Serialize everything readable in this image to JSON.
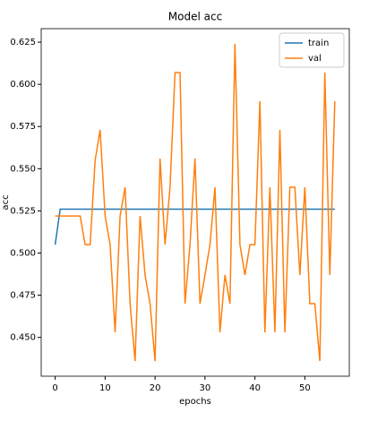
{
  "chart_data": {
    "type": "line",
    "title": "Model acc",
    "xlabel": "epochs",
    "ylabel": "acc",
    "x": [
      0,
      1,
      2,
      3,
      4,
      5,
      6,
      7,
      8,
      9,
      10,
      11,
      12,
      13,
      14,
      15,
      16,
      17,
      18,
      19,
      20,
      21,
      22,
      23,
      24,
      25,
      26,
      27,
      28,
      29,
      30,
      31,
      32,
      33,
      34,
      35,
      36,
      37,
      38,
      39,
      40,
      41,
      42,
      43,
      44,
      45,
      46,
      47,
      48,
      49,
      50,
      51,
      52,
      53,
      54,
      55,
      56
    ],
    "series": [
      {
        "name": "train",
        "color": "#1f77b4",
        "values": [
          0.505,
          0.526,
          0.526,
          0.526,
          0.526,
          0.526,
          0.526,
          0.526,
          0.526,
          0.526,
          0.526,
          0.526,
          0.526,
          0.526,
          0.526,
          0.526,
          0.526,
          0.526,
          0.526,
          0.526,
          0.526,
          0.526,
          0.526,
          0.526,
          0.526,
          0.526,
          0.526,
          0.526,
          0.526,
          0.526,
          0.526,
          0.526,
          0.526,
          0.526,
          0.526,
          0.526,
          0.526,
          0.526,
          0.526,
          0.526,
          0.526,
          0.526,
          0.526,
          0.526,
          0.526,
          0.526,
          0.526,
          0.526,
          0.526,
          0.526,
          0.526,
          0.526,
          0.526,
          0.526,
          0.526,
          0.526,
          0.526
        ]
      },
      {
        "name": "val",
        "color": "#ff7f0e",
        "values": [
          0.522,
          0.522,
          0.522,
          0.522,
          0.522,
          0.522,
          0.505,
          0.505,
          0.555,
          0.573,
          0.522,
          0.505,
          0.453,
          0.522,
          0.539,
          0.47,
          0.436,
          0.522,
          0.487,
          0.47,
          0.436,
          0.556,
          0.505,
          0.539,
          0.607,
          0.607,
          0.47,
          0.505,
          0.556,
          0.47,
          0.487,
          0.505,
          0.539,
          0.453,
          0.487,
          0.47,
          0.624,
          0.505,
          0.487,
          0.505,
          0.505,
          0.59,
          0.453,
          0.539,
          0.453,
          0.573,
          0.453,
          0.539,
          0.539,
          0.487,
          0.539,
          0.47,
          0.47,
          0.436,
          0.607,
          0.487,
          0.59
        ]
      }
    ],
    "xlim": [
      -2.8,
      58.9
    ],
    "xticks": [
      0,
      10,
      20,
      30,
      40,
      50
    ],
    "ylim": [
      0.427,
      0.633
    ],
    "yticks": [
      {
        "value": 0.45,
        "label": "0.450"
      },
      {
        "value": 0.475,
        "label": "0.475"
      },
      {
        "value": 0.5,
        "label": "0.500"
      },
      {
        "value": 0.525,
        "label": "0.525"
      },
      {
        "value": 0.55,
        "label": "0.550"
      },
      {
        "value": 0.575,
        "label": "0.575"
      },
      {
        "value": 0.6,
        "label": "0.600"
      },
      {
        "value": 0.625,
        "label": "0.625"
      }
    ],
    "legend": "upper right"
  }
}
